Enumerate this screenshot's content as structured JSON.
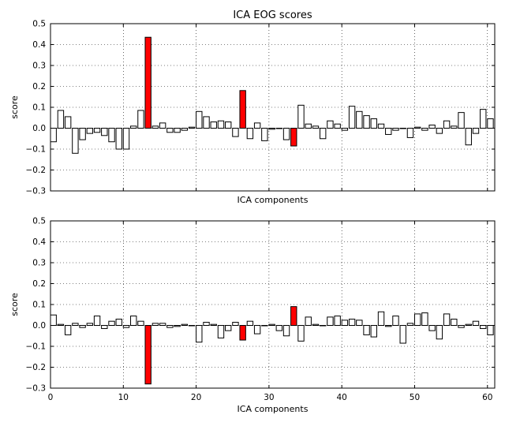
{
  "chart_data": [
    {
      "type": "bar",
      "title": "ICA EOG scores",
      "xlabel": "ICA components",
      "ylabel": "score",
      "ylim": [
        -0.3,
        0.5
      ],
      "xlim": [
        0,
        61
      ],
      "yticks": [
        "−0.3",
        "−0.2",
        "−0.1",
        "0.0",
        "0.1",
        "0.2",
        "0.3",
        "0.4",
        "0.5"
      ],
      "xticks": [],
      "grid": true,
      "bar_color": "#ffffff",
      "highlight_color": "#ff0000",
      "highlighted_components": [
        13,
        26,
        33
      ],
      "values": [
        -0.065,
        0.085,
        0.055,
        -0.12,
        -0.055,
        -0.025,
        -0.02,
        -0.035,
        -0.065,
        -0.1,
        -0.1,
        0.01,
        0.085,
        0.435,
        0.01,
        0.025,
        -0.02,
        -0.02,
        -0.01,
        0.005,
        0.08,
        0.055,
        0.03,
        0.035,
        0.03,
        -0.04,
        0.18,
        -0.05,
        0.025,
        -0.06,
        -0.005,
        0.0,
        -0.055,
        -0.085,
        0.11,
        0.02,
        0.01,
        -0.05,
        0.035,
        0.02,
        -0.01,
        0.105,
        0.08,
        0.06,
        0.045,
        0.02,
        -0.03,
        -0.01,
        0.0,
        -0.045,
        0.005,
        -0.01,
        0.015,
        -0.025,
        0.035,
        0.01,
        0.075,
        -0.08,
        -0.025,
        0.09,
        0.045
      ]
    },
    {
      "type": "bar",
      "title": "",
      "xlabel": "ICA components",
      "ylabel": "score",
      "ylim": [
        -0.3,
        0.5
      ],
      "xlim": [
        0,
        61
      ],
      "yticks": [
        "−0.3",
        "−0.2",
        "−0.1",
        "0.0",
        "0.1",
        "0.2",
        "0.3",
        "0.4",
        "0.5"
      ],
      "xticks": [
        "0",
        "10",
        "20",
        "30",
        "40",
        "50",
        "60"
      ],
      "grid": true,
      "bar_color": "#ffffff",
      "highlight_color": "#ff0000",
      "highlighted_components": [
        13,
        26,
        33
      ],
      "values": [
        0.05,
        0.005,
        -0.045,
        0.01,
        -0.01,
        0.01,
        0.045,
        -0.015,
        0.02,
        0.03,
        -0.01,
        0.045,
        0.02,
        -0.28,
        0.01,
        0.01,
        -0.01,
        -0.005,
        0.005,
        0.0,
        -0.08,
        0.015,
        0.005,
        -0.06,
        -0.025,
        0.015,
        -0.07,
        0.02,
        -0.04,
        0.0,
        0.005,
        -0.025,
        -0.05,
        0.09,
        -0.075,
        0.04,
        0.005,
        0.0,
        0.04,
        0.045,
        0.025,
        0.03,
        0.025,
        -0.045,
        -0.055,
        0.065,
        -0.005,
        0.045,
        -0.085,
        0.01,
        0.055,
        0.06,
        -0.025,
        -0.065,
        0.055,
        0.03,
        -0.01,
        0.005,
        0.02,
        -0.015,
        -0.045
      ]
    }
  ]
}
